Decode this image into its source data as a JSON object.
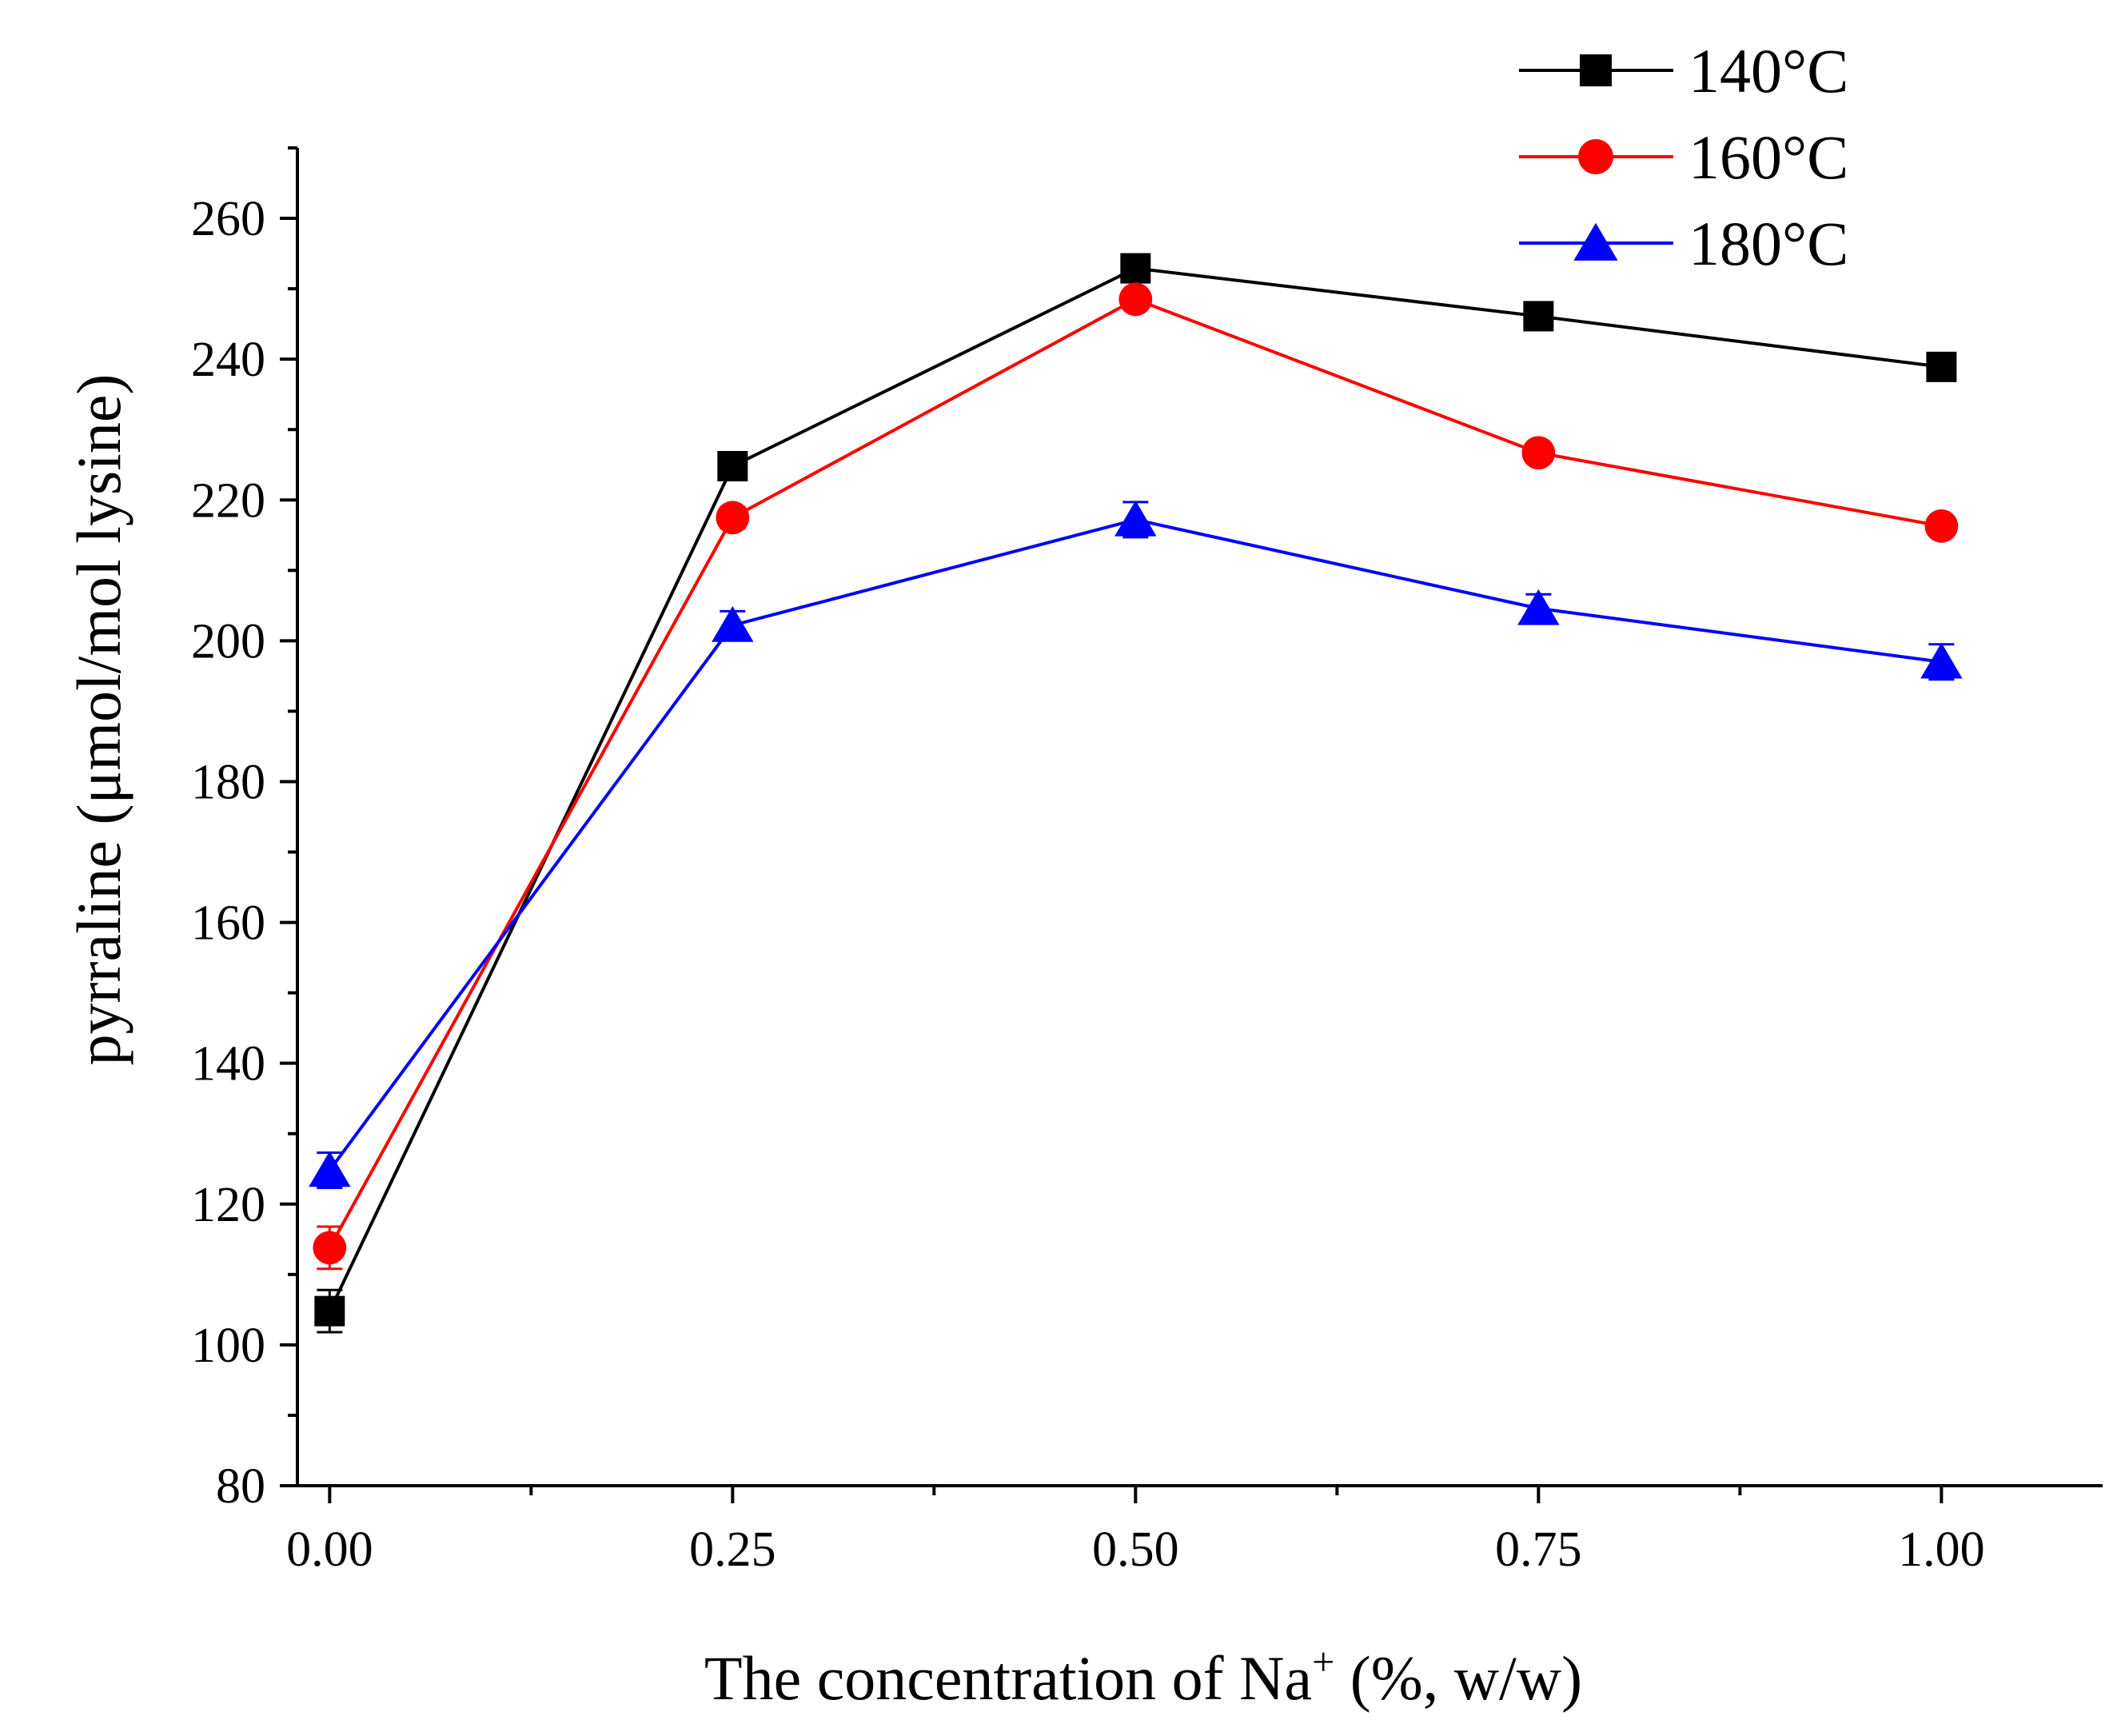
{
  "chart_data": {
    "type": "line",
    "title": "",
    "xlabel": "The concentration of Na",
    "xlabel_sup": "+",
    "xlabel_tail": " (%, w/w)",
    "ylabel": "pyrraline (μmol/mol lysine)",
    "x": [
      0.0,
      0.25,
      0.5,
      0.75,
      1.0
    ],
    "x_tick_labels": [
      "0.00",
      "0.25",
      "0.50",
      "0.75",
      "1.00"
    ],
    "xlim": [
      -0.02,
      1.1
    ],
    "ylim": [
      80,
      270
    ],
    "y_ticks": [
      80,
      100,
      120,
      140,
      160,
      180,
      200,
      220,
      240,
      260
    ],
    "y_tick_labels": [
      "80",
      "100",
      "120",
      "140",
      "160",
      "180",
      "200",
      "220",
      "240",
      "260"
    ],
    "legend_position": "top-right",
    "series": [
      {
        "name": "140°C",
        "color": "#000000",
        "marker": "square",
        "values": [
          104.8,
          224.8,
          252.9,
          246.1,
          238.9
        ],
        "errors": [
          3.0,
          1.5,
          1.0,
          1.0,
          1.0
        ]
      },
      {
        "name": "160°C",
        "color": "#ff0000",
        "marker": "circle",
        "values": [
          113.8,
          217.5,
          248.5,
          226.7,
          216.3
        ],
        "errors": [
          3.0,
          1.5,
          1.0,
          1.0,
          1.0
        ]
      },
      {
        "name": "180°C",
        "color": "#0000ff",
        "marker": "triangle",
        "values": [
          124.8,
          202.2,
          217.2,
          204.6,
          197.0
        ],
        "errors": [
          2.5,
          2.0,
          2.5,
          2.0,
          2.5
        ]
      }
    ]
  }
}
